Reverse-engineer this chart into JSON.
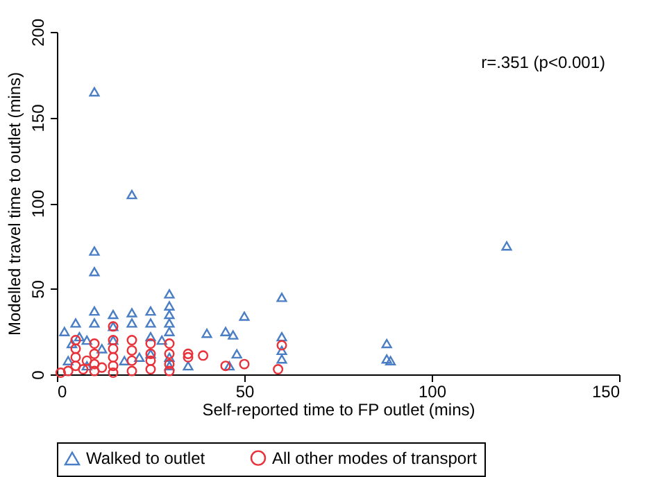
{
  "chart_data": {
    "type": "scatter",
    "xlabel": "Self-reported time to FP outlet (mins)",
    "ylabel": "Modelled travel time to outlet (mins)",
    "xlim": [
      0,
      150
    ],
    "xticks": [
      0,
      50,
      100,
      150
    ],
    "ylim": [
      0,
      200
    ],
    "yticks": [
      0,
      50,
      100,
      150,
      200
    ],
    "grid": false,
    "legend": "bottom",
    "annotations": [
      "r=.351 (p<0.001)"
    ],
    "series": [
      {
        "name": "Walked to outlet",
        "color": "#4a7ec4",
        "marker": "triangle",
        "x": [
          10,
          20,
          10,
          120,
          10,
          60,
          30,
          30,
          50,
          45,
          47,
          40,
          60,
          60,
          60,
          88,
          88,
          89,
          48,
          46,
          25,
          25,
          20,
          20,
          15,
          15,
          10,
          10,
          5,
          2,
          6,
          4,
          8,
          30,
          30,
          30,
          28,
          25,
          25,
          22,
          15,
          12,
          18,
          30,
          30,
          35,
          3,
          8
        ],
        "values": [
          165,
          105,
          72,
          75,
          60,
          45,
          47,
          40,
          34,
          25,
          23,
          24,
          22,
          14,
          9,
          18,
          9,
          8,
          12,
          5,
          37,
          30,
          36,
          30,
          35,
          28,
          37,
          30,
          30,
          25,
          22,
          18,
          20,
          35,
          30,
          25,
          20,
          22,
          12,
          10,
          20,
          15,
          8,
          10,
          5,
          5,
          8,
          5
        ]
      },
      {
        "name": "All other modes of transport",
        "color": "#e8323a",
        "marker": "circle",
        "x": [
          1,
          3,
          5,
          5,
          5,
          7,
          8,
          10,
          10,
          10,
          10,
          12,
          15,
          15,
          15,
          15,
          15,
          15,
          20,
          20,
          20,
          20,
          25,
          25,
          25,
          30,
          30,
          30,
          30,
          35,
          35,
          39,
          45,
          50,
          59,
          60,
          25,
          5
        ],
        "values": [
          1,
          2,
          5,
          10,
          15,
          3,
          8,
          2,
          6,
          12,
          18,
          4,
          1,
          5,
          10,
          15,
          20,
          28,
          2,
          8,
          14,
          20,
          3,
          8,
          12,
          2,
          6,
          12,
          18,
          12,
          10,
          11,
          5,
          6,
          3,
          17,
          18,
          20
        ]
      }
    ]
  }
}
